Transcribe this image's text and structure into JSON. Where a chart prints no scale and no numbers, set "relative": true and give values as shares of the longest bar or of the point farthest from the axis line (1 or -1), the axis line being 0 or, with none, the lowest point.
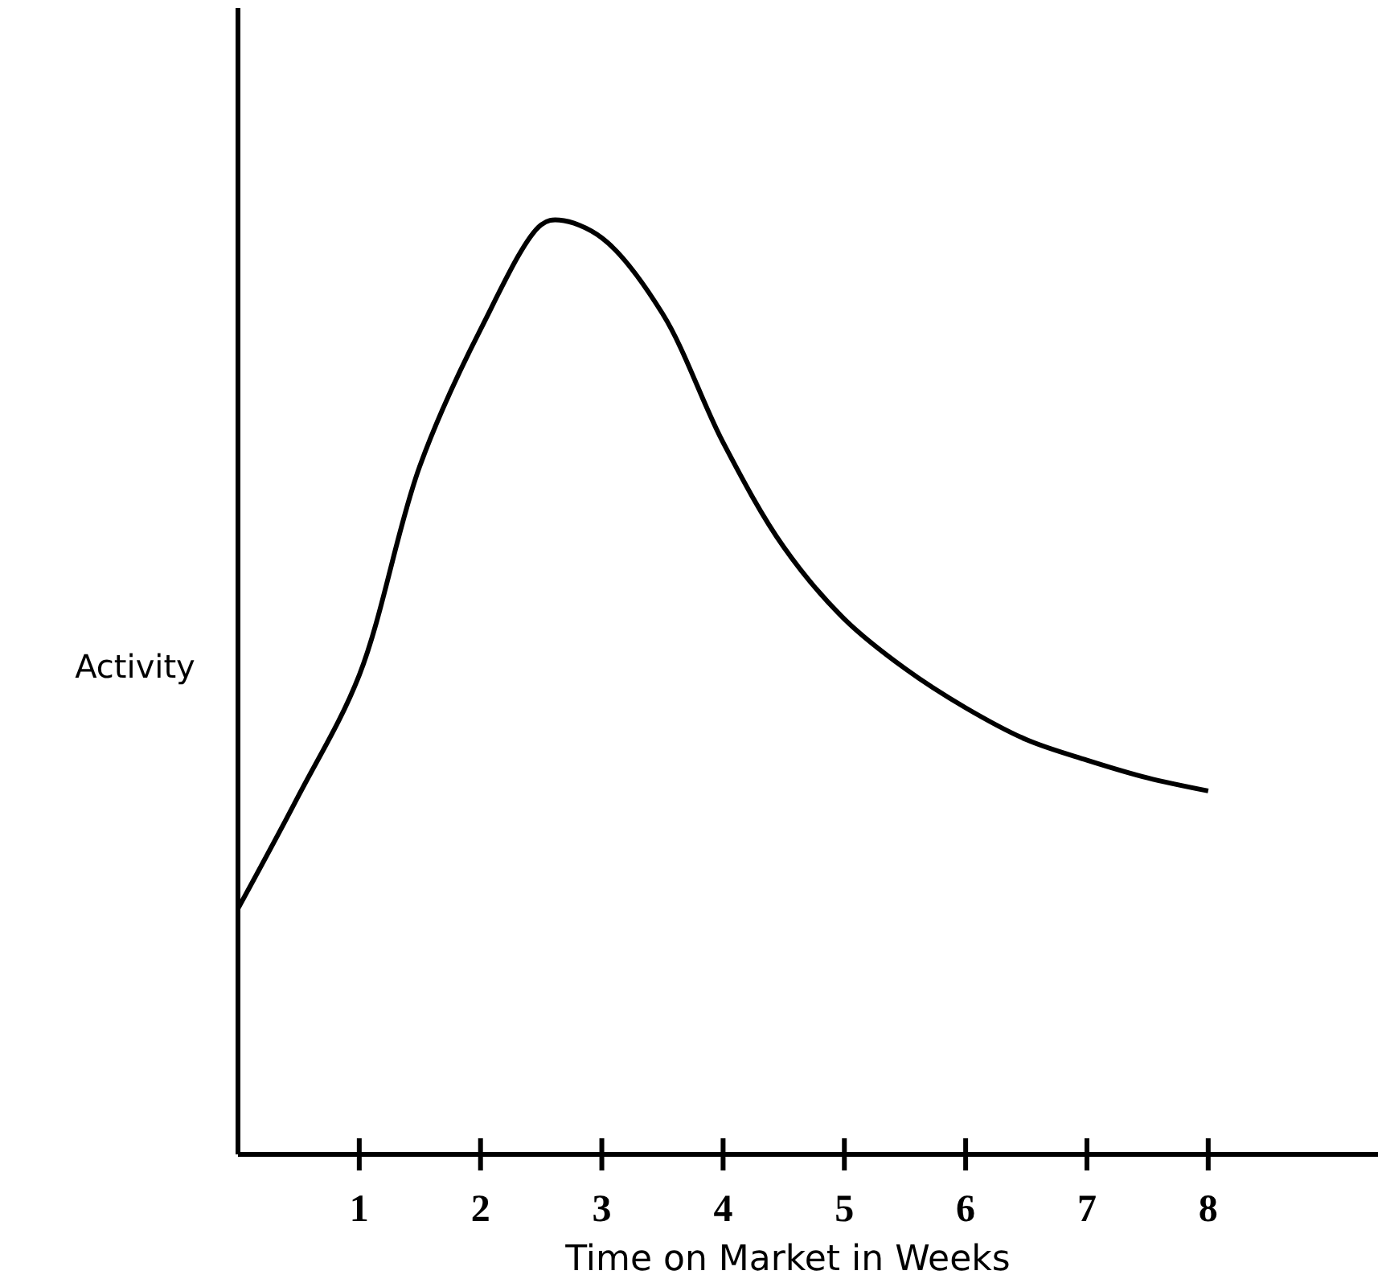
{
  "chart_data": {
    "type": "line",
    "relative": true,
    "xlabel": "Time on Market in Weeks",
    "ylabel": "Activity",
    "color": "#000000",
    "x": [
      0,
      0.5,
      1,
      1.5,
      2,
      2.5,
      2.65,
      3,
      3.5,
      4,
      4.5,
      5,
      5.5,
      6,
      6.5,
      7,
      7.5,
      8
    ],
    "values": [
      0.263,
      0.384,
      0.513,
      0.737,
      0.883,
      0.995,
      1,
      0.981,
      0.9,
      0.762,
      0.65,
      0.573,
      0.52,
      0.478,
      0.444,
      0.422,
      0.403,
      0.389
    ],
    "xlim": [
      0,
      9.4
    ],
    "xticks": [
      1,
      2,
      3,
      4,
      5,
      6,
      7,
      8
    ],
    "grid": false,
    "marker": "none",
    "line_style": "solid"
  }
}
